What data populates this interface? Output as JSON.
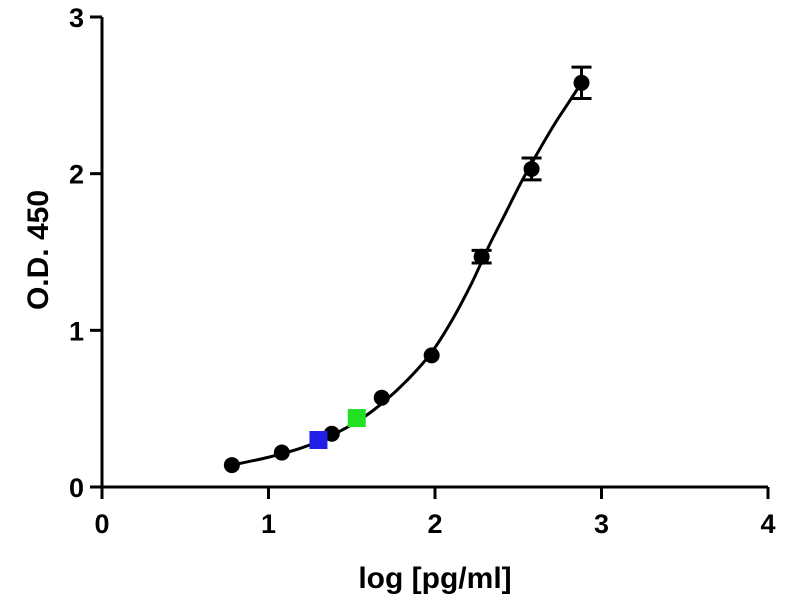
{
  "chart_data": {
    "type": "scatter",
    "xlabel": "log [pg/ml]",
    "ylabel": "O.D. 450",
    "xlim": [
      0,
      4
    ],
    "ylim": [
      0,
      3
    ],
    "x_ticks": [
      "0",
      "1",
      "2",
      "3",
      "4"
    ],
    "y_ticks": [
      "0",
      "1",
      "2",
      "3"
    ],
    "grid": false,
    "legend": "none",
    "series": [
      {
        "marker": "circle",
        "color": "#000000",
        "x": [
          0.78,
          1.08,
          1.38,
          1.68,
          1.98,
          2.28,
          2.58,
          2.88
        ],
        "y": [
          0.14,
          0.22,
          0.34,
          0.57,
          0.84,
          1.47,
          2.03,
          2.58
        ],
        "error": [
          0.02,
          0.02,
          0.02,
          0.03,
          0.03,
          0.04,
          0.07,
          0.1
        ]
      },
      {
        "marker": "square",
        "color": "#1f1fe6",
        "x": [
          1.3
        ],
        "y": [
          0.3
        ]
      },
      {
        "marker": "square",
        "color": "#22e022",
        "x": [
          1.53
        ],
        "y": [
          0.44
        ]
      }
    ],
    "fit_curve": {
      "type": "4PL",
      "color": "#000000",
      "x_range": [
        0.78,
        2.88
      ],
      "points_x": [
        0.78,
        1.0,
        1.2,
        1.38,
        1.55,
        1.7,
        1.85,
        1.98,
        2.1,
        2.22,
        2.32,
        2.42,
        2.52,
        2.62,
        2.72,
        2.8,
        2.88
      ],
      "points_y": [
        0.14,
        0.19,
        0.25,
        0.33,
        0.43,
        0.55,
        0.7,
        0.86,
        1.06,
        1.3,
        1.53,
        1.74,
        1.95,
        2.14,
        2.32,
        2.45,
        2.58
      ]
    }
  }
}
